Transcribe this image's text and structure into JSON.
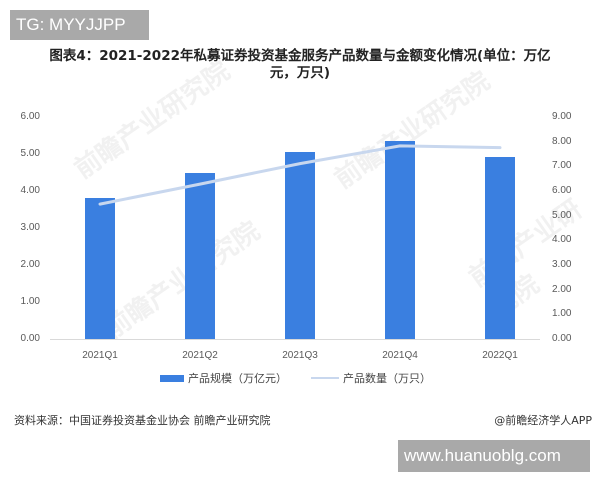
{
  "overlay": {
    "tg_label": "TG: MYYJJPP",
    "site_label": "www.huanuoblg.com"
  },
  "chart_data": {
    "type": "bar",
    "title": "图表4：2021-2022年私募证券投资基金服务产品数量与金额变化情况(单位：万亿元，万只)",
    "title_line1": "图表4：2021-2022年私募证券投资基金服务产品数量与金额变化情况(单位：万亿",
    "title_line2": "元，万只)",
    "categories": [
      "2021Q1",
      "2021Q2",
      "2021Q3",
      "2021Q4",
      "2022Q1"
    ],
    "series": [
      {
        "name": "产品规模（万亿元）",
        "type": "bar",
        "axis": "left",
        "color": "#3a7fe0",
        "values": [
          3.82,
          4.48,
          5.06,
          5.36,
          4.91
        ]
      },
      {
        "name": "产品数量（万只）",
        "type": "line",
        "axis": "right",
        "color": "#c8d7ee",
        "values": [
          5.47,
          6.28,
          7.11,
          7.83,
          7.76
        ]
      }
    ],
    "left_axis": {
      "ylim": [
        0,
        6
      ],
      "ticks": [
        "6.00",
        "5.00",
        "4.00",
        "3.00",
        "2.00",
        "1.00",
        "0.00"
      ]
    },
    "right_axis": {
      "ylim": [
        0,
        9
      ],
      "ticks": [
        "9.00",
        "8.00",
        "7.00",
        "6.00",
        "5.00",
        "4.00",
        "3.00",
        "2.00",
        "1.00",
        "0.00"
      ]
    },
    "xlabel": "",
    "ylabel": "",
    "grid": false,
    "legend_position": "bottom"
  },
  "legend": {
    "bar_label": "产品规模（万亿元）",
    "line_label": "产品数量（万只）"
  },
  "footer": {
    "source": "资料来源：中国证券投资基金业协会 前瞻产业研究院",
    "credit": "@前瞻经济学人APP"
  },
  "watermark": "前瞻产业研究院"
}
